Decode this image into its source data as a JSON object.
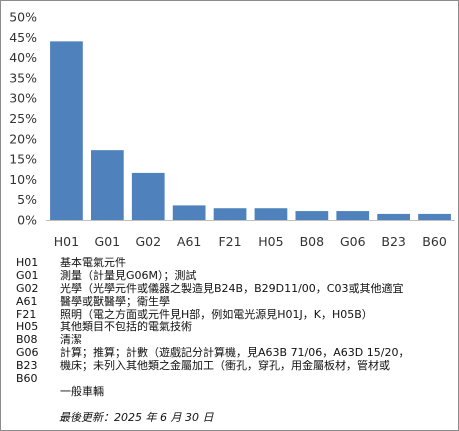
{
  "chart_data": {
    "type": "bar",
    "categories": [
      "H01",
      "G01",
      "G02",
      "A61",
      "F21",
      "H05",
      "B08",
      "G06",
      "B23",
      "B60"
    ],
    "values": [
      44,
      17.2,
      11.6,
      3.6,
      2.9,
      2.9,
      2.2,
      2.2,
      1.5,
      1.5
    ],
    "ylim": [
      0,
      50
    ],
    "yticks": [
      "0%",
      "5%",
      "10%",
      "15%",
      "20%",
      "25%",
      "30%",
      "35%",
      "40%",
      "45%",
      "50%"
    ],
    "grid": false,
    "bar_color": "#4f81bd"
  },
  "legend": [
    {
      "code": "H01",
      "desc": "基本電氣元件"
    },
    {
      "code": "G01",
      "desc": "測量（計量見G06M）；測試"
    },
    {
      "code": "G02",
      "desc": "光學（光學元件或儀器之製造見B24B，B29D11/00，C03或其他適宜"
    },
    {
      "code": "A61",
      "desc": "醫學或獸醫學；衛生學"
    },
    {
      "code": "F21",
      "desc": "照明（電之方面或元件見H部，例如電光源見H01J，K，H05B）"
    },
    {
      "code": "H05",
      "desc": "其他類目不包括的電氣技術"
    },
    {
      "code": "B08",
      "desc": "清潔"
    },
    {
      "code": "G06",
      "desc": "計算；推算；計數（遊戲記分計算機，見A63B 71/06，A63D 15/20，"
    },
    {
      "code": "B23",
      "desc": "機床；未列入其他類之金屬加工（衝孔，穿孔，用金屬板材，管材或"
    },
    {
      "code": "B60",
      "desc": ""
    }
  ],
  "legend_continuation": "一般車輛",
  "footer_note": "最後更新：2025 年 6 月 30 日"
}
